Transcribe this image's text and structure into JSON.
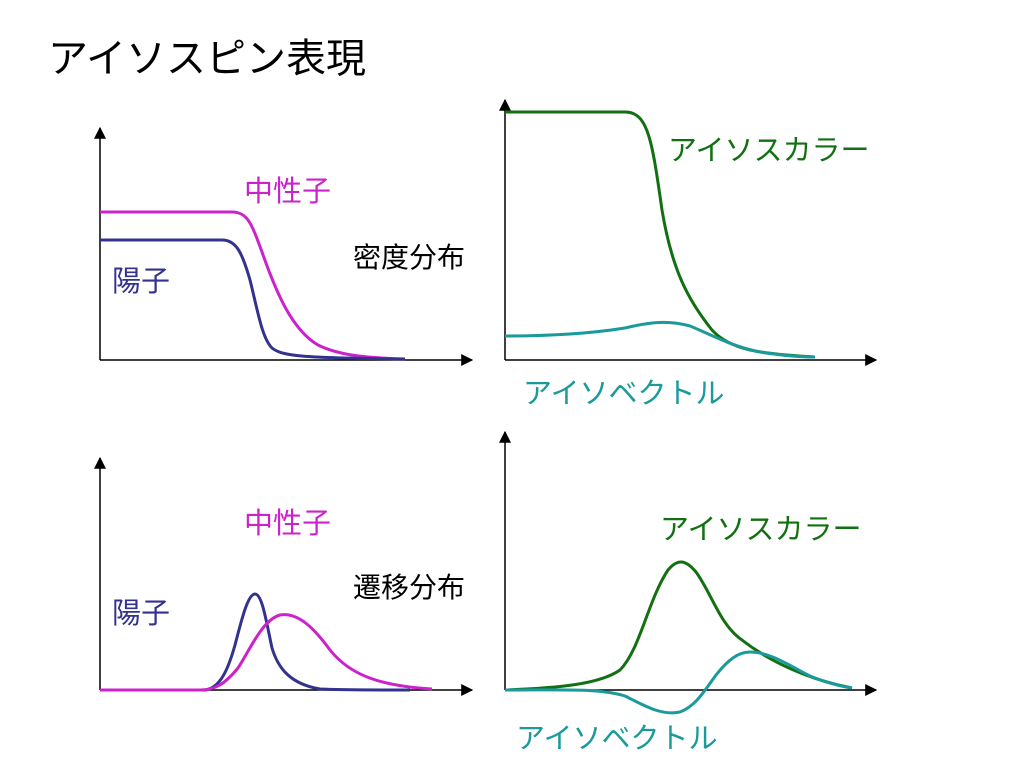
{
  "title": "アイソスピン表現",
  "colors": {
    "neutron": "#cc22cc",
    "proton": "#33338f",
    "isocolor": "#127012",
    "isovector": "#1a9a9a",
    "axis": "#000000"
  },
  "labels": {
    "density_distribution": "密度分布",
    "transition_distribution": "遷移分布",
    "neutron": "中性子",
    "proton": "陽子",
    "isocolor": "アイソスカラー",
    "isovector": "アイソベクトル"
  }
}
